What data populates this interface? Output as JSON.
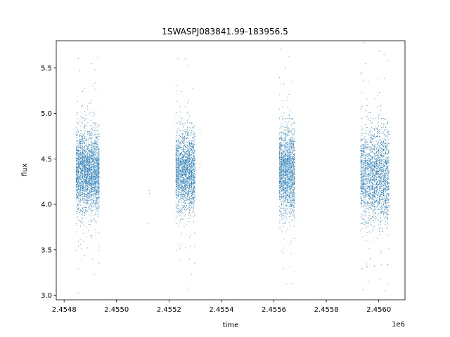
{
  "chart_data": {
    "type": "scatter",
    "title": "1SWASPJ083841.99-183956.5",
    "xlabel": "time",
    "ylabel": "flux",
    "x_offset_label": "1e6",
    "xlim": [
      2454770,
      2456100
    ],
    "ylim": [
      2.95,
      5.8
    ],
    "x_ticks": [
      2454800,
      2455000,
      2455200,
      2455400,
      2455600,
      2455800,
      2456000
    ],
    "x_tick_labels": [
      "2.4548",
      "2.4550",
      "2.4552",
      "2.4554",
      "2.4556",
      "2.4558",
      "2.4560"
    ],
    "y_ticks": [
      3.0,
      3.5,
      4.0,
      4.5,
      5.0,
      5.5
    ],
    "y_tick_labels": [
      "3.0",
      "3.5",
      "4.0",
      "4.5",
      "5.0",
      "5.5"
    ],
    "grid": false,
    "marker_color": "#1f77b4",
    "observing_seasons": [
      {
        "x_range": [
          2454845,
          2454935
        ],
        "median_flux": 4.35,
        "spread": 0.22,
        "approx_points": 2600
      },
      {
        "x_range": [
          2455225,
          2455300
        ],
        "median_flux": 4.35,
        "spread": 0.22,
        "approx_points": 2000
      },
      {
        "x_range": [
          2455620,
          2455680
        ],
        "median_flux": 4.35,
        "spread": 0.24,
        "approx_points": 1800
      },
      {
        "x_range": [
          2455930,
          2456040
        ],
        "median_flux": 4.3,
        "spread": 0.26,
        "approx_points": 2400
      }
    ],
    "notable_points": [
      {
        "x": 2454854,
        "y": 3.29
      },
      {
        "x": 2454905,
        "y": 5.55
      },
      {
        "x": 2454915,
        "y": 3.23
      },
      {
        "x": 2454928,
        "y": 5.61
      },
      {
        "x": 2455125,
        "y": 4.12
      },
      {
        "x": 2455125,
        "y": 4.15
      },
      {
        "x": 2455120,
        "y": 3.79
      },
      {
        "x": 2455262,
        "y": 5.6
      },
      {
        "x": 2455273,
        "y": 3.08
      },
      {
        "x": 2455286,
        "y": 3.23
      },
      {
        "x": 2455318,
        "y": 4.82
      },
      {
        "x": 2455318,
        "y": 4.45
      },
      {
        "x": 2455643,
        "y": 5.5
      },
      {
        "x": 2455648,
        "y": 3.12
      },
      {
        "x": 2455668,
        "y": 3.13
      },
      {
        "x": 2455935,
        "y": 5.45
      },
      {
        "x": 2455940,
        "y": 3.06
      },
      {
        "x": 2455950,
        "y": 5.55
      },
      {
        "x": 2455998,
        "y": 5.38
      },
      {
        "x": 2456020,
        "y": 5.65
      },
      {
        "x": 2456025,
        "y": 3.05
      },
      {
        "x": 2456035,
        "y": 5.58
      }
    ]
  }
}
